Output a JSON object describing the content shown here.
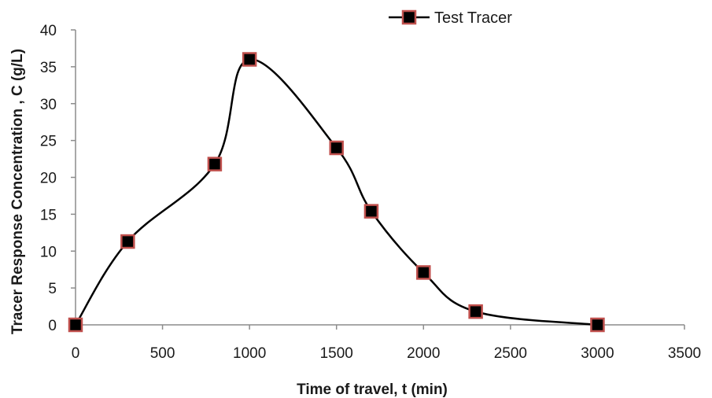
{
  "chart_data": {
    "type": "line",
    "xlabel": "Time of travel, t (min)",
    "ylabel": "Tracer Response Concentration , C (g/L)",
    "xlim": [
      0,
      3500
    ],
    "ylim": [
      0,
      40
    ],
    "x_ticks": [
      0,
      500,
      1000,
      1500,
      2000,
      2500,
      3000,
      3500
    ],
    "y_ticks": [
      0,
      5,
      10,
      15,
      20,
      25,
      30,
      35,
      40
    ],
    "grid": false,
    "smoothed": true,
    "legend_position": "top-center",
    "series": [
      {
        "name": "Test Tracer",
        "line_color": "#000000",
        "marker": "square",
        "marker_fill": "#000000",
        "marker_edge": "#c0504d",
        "x": [
          0,
          300,
          800,
          1000,
          1500,
          1700,
          2000,
          2300,
          3000
        ],
        "y": [
          0,
          11.3,
          21.8,
          36.0,
          24.0,
          15.4,
          7.1,
          1.8,
          0
        ]
      }
    ]
  }
}
